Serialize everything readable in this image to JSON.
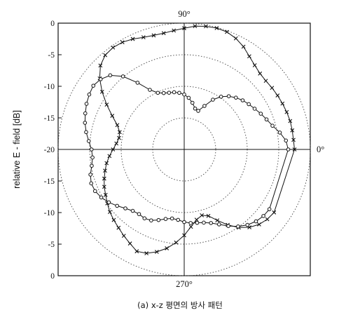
{
  "chart_data": {
    "type": "polar-line",
    "caption": "(a) x-z 평면의 방사 패턴",
    "ylabel": "relative E - field [dB]",
    "angle_labels": {
      "top": "90°",
      "right": "0°",
      "bottom": "270°"
    },
    "radial_range_db": [
      -20,
      0
    ],
    "upper_tick_labels": [
      "0",
      "-5",
      "-10",
      "-15",
      "-20"
    ],
    "lower_tick_labels": [
      "-15",
      "-10",
      "-5",
      "0"
    ],
    "grid_rings_db": [
      -20,
      -15,
      -10,
      -5,
      0
    ],
    "grid": true,
    "series": [
      {
        "marker": "x",
        "angles_deg": [
          0,
          5,
          10,
          15,
          20,
          25,
          30,
          35,
          40,
          45,
          50,
          55,
          60,
          65,
          70,
          75,
          80,
          85,
          90,
          95,
          100,
          105,
          110,
          115,
          120,
          125,
          130,
          135,
          140,
          145,
          150,
          155,
          160,
          165,
          170,
          175,
          180,
          185,
          190,
          195,
          200,
          205,
          210,
          215,
          220,
          225,
          230,
          235,
          240,
          245,
          250,
          255,
          260,
          265,
          270,
          275,
          280,
          285,
          290,
          295,
          300,
          305,
          310,
          315,
          320,
          325
        ],
        "values_db": [
          -2.5,
          -2.6,
          -2.6,
          -2.6,
          -2.7,
          -2.8,
          -2.9,
          -3.0,
          -3.1,
          -3.0,
          -2.6,
          -2.0,
          -1.2,
          -0.6,
          -0.2,
          -0.1,
          -0.2,
          -0.4,
          -0.8,
          -1.1,
          -1.3,
          -1.3,
          -1.1,
          -0.7,
          -0.4,
          -0.3,
          -0.5,
          -1.2,
          -2.5,
          -4.1,
          -5.8,
          -7.4,
          -8.7,
          -9.4,
          -9.5,
          -9.2,
          -8.7,
          -8.1,
          -7.5,
          -7.0,
          -6.5,
          -6.0,
          -5.6,
          -5.1,
          -4.6,
          -4.2,
          -3.8,
          -3.3,
          -2.8,
          -2.2,
          -2.5,
          -3.2,
          -4.1,
          -5.2,
          -6.4,
          -7.7,
          -8.7,
          -9.2,
          -8.8,
          -7.6,
          -6.2,
          -4.9,
          -3.9,
          -3.2,
          -2.8,
          -2.6
        ]
      },
      {
        "marker": "o",
        "angles_deg": [
          0,
          5,
          10,
          15,
          20,
          25,
          30,
          35,
          40,
          45,
          50,
          55,
          60,
          65,
          70,
          75,
          80,
          85,
          90,
          95,
          100,
          105,
          110,
          115,
          120,
          125,
          130,
          135,
          140,
          145,
          150,
          155,
          160,
          165,
          170,
          175,
          180,
          185,
          190,
          195,
          200,
          205,
          210,
          215,
          220,
          225,
          230,
          235,
          240,
          245,
          250,
          255,
          260,
          265,
          270,
          275,
          280,
          285,
          290,
          295,
          300,
          305,
          310,
          315,
          320,
          325
        ],
        "values_db": [
          -3.5,
          -3.8,
          -4.6,
          -5.5,
          -6.1,
          -6.6,
          -7.1,
          -7.5,
          -7.9,
          -8.4,
          -9.0,
          -9.8,
          -10.9,
          -12.4,
          -13.5,
          -13.3,
          -12.5,
          -11.8,
          -11.3,
          -11.0,
          -10.8,
          -10.7,
          -10.5,
          -10.1,
          -9.1,
          -7.1,
          -4.9,
          -3.4,
          -2.7,
          -2.4,
          -2.6,
          -2.9,
          -3.3,
          -3.7,
          -4.2,
          -4.8,
          -5.3,
          -5.4,
          -5.1,
          -4.6,
          -4.3,
          -4.4,
          -4.8,
          -5.4,
          -6.1,
          -6.8,
          -7.3,
          -7.5,
          -7.4,
          -7.6,
          -8.1,
          -8.6,
          -8.9,
          -8.8,
          -8.5,
          -8.3,
          -8.2,
          -8.0,
          -7.6,
          -6.9,
          -6.0,
          -5.1,
          -4.4,
          -3.9,
          -3.6,
          -3.5
        ]
      }
    ]
  }
}
